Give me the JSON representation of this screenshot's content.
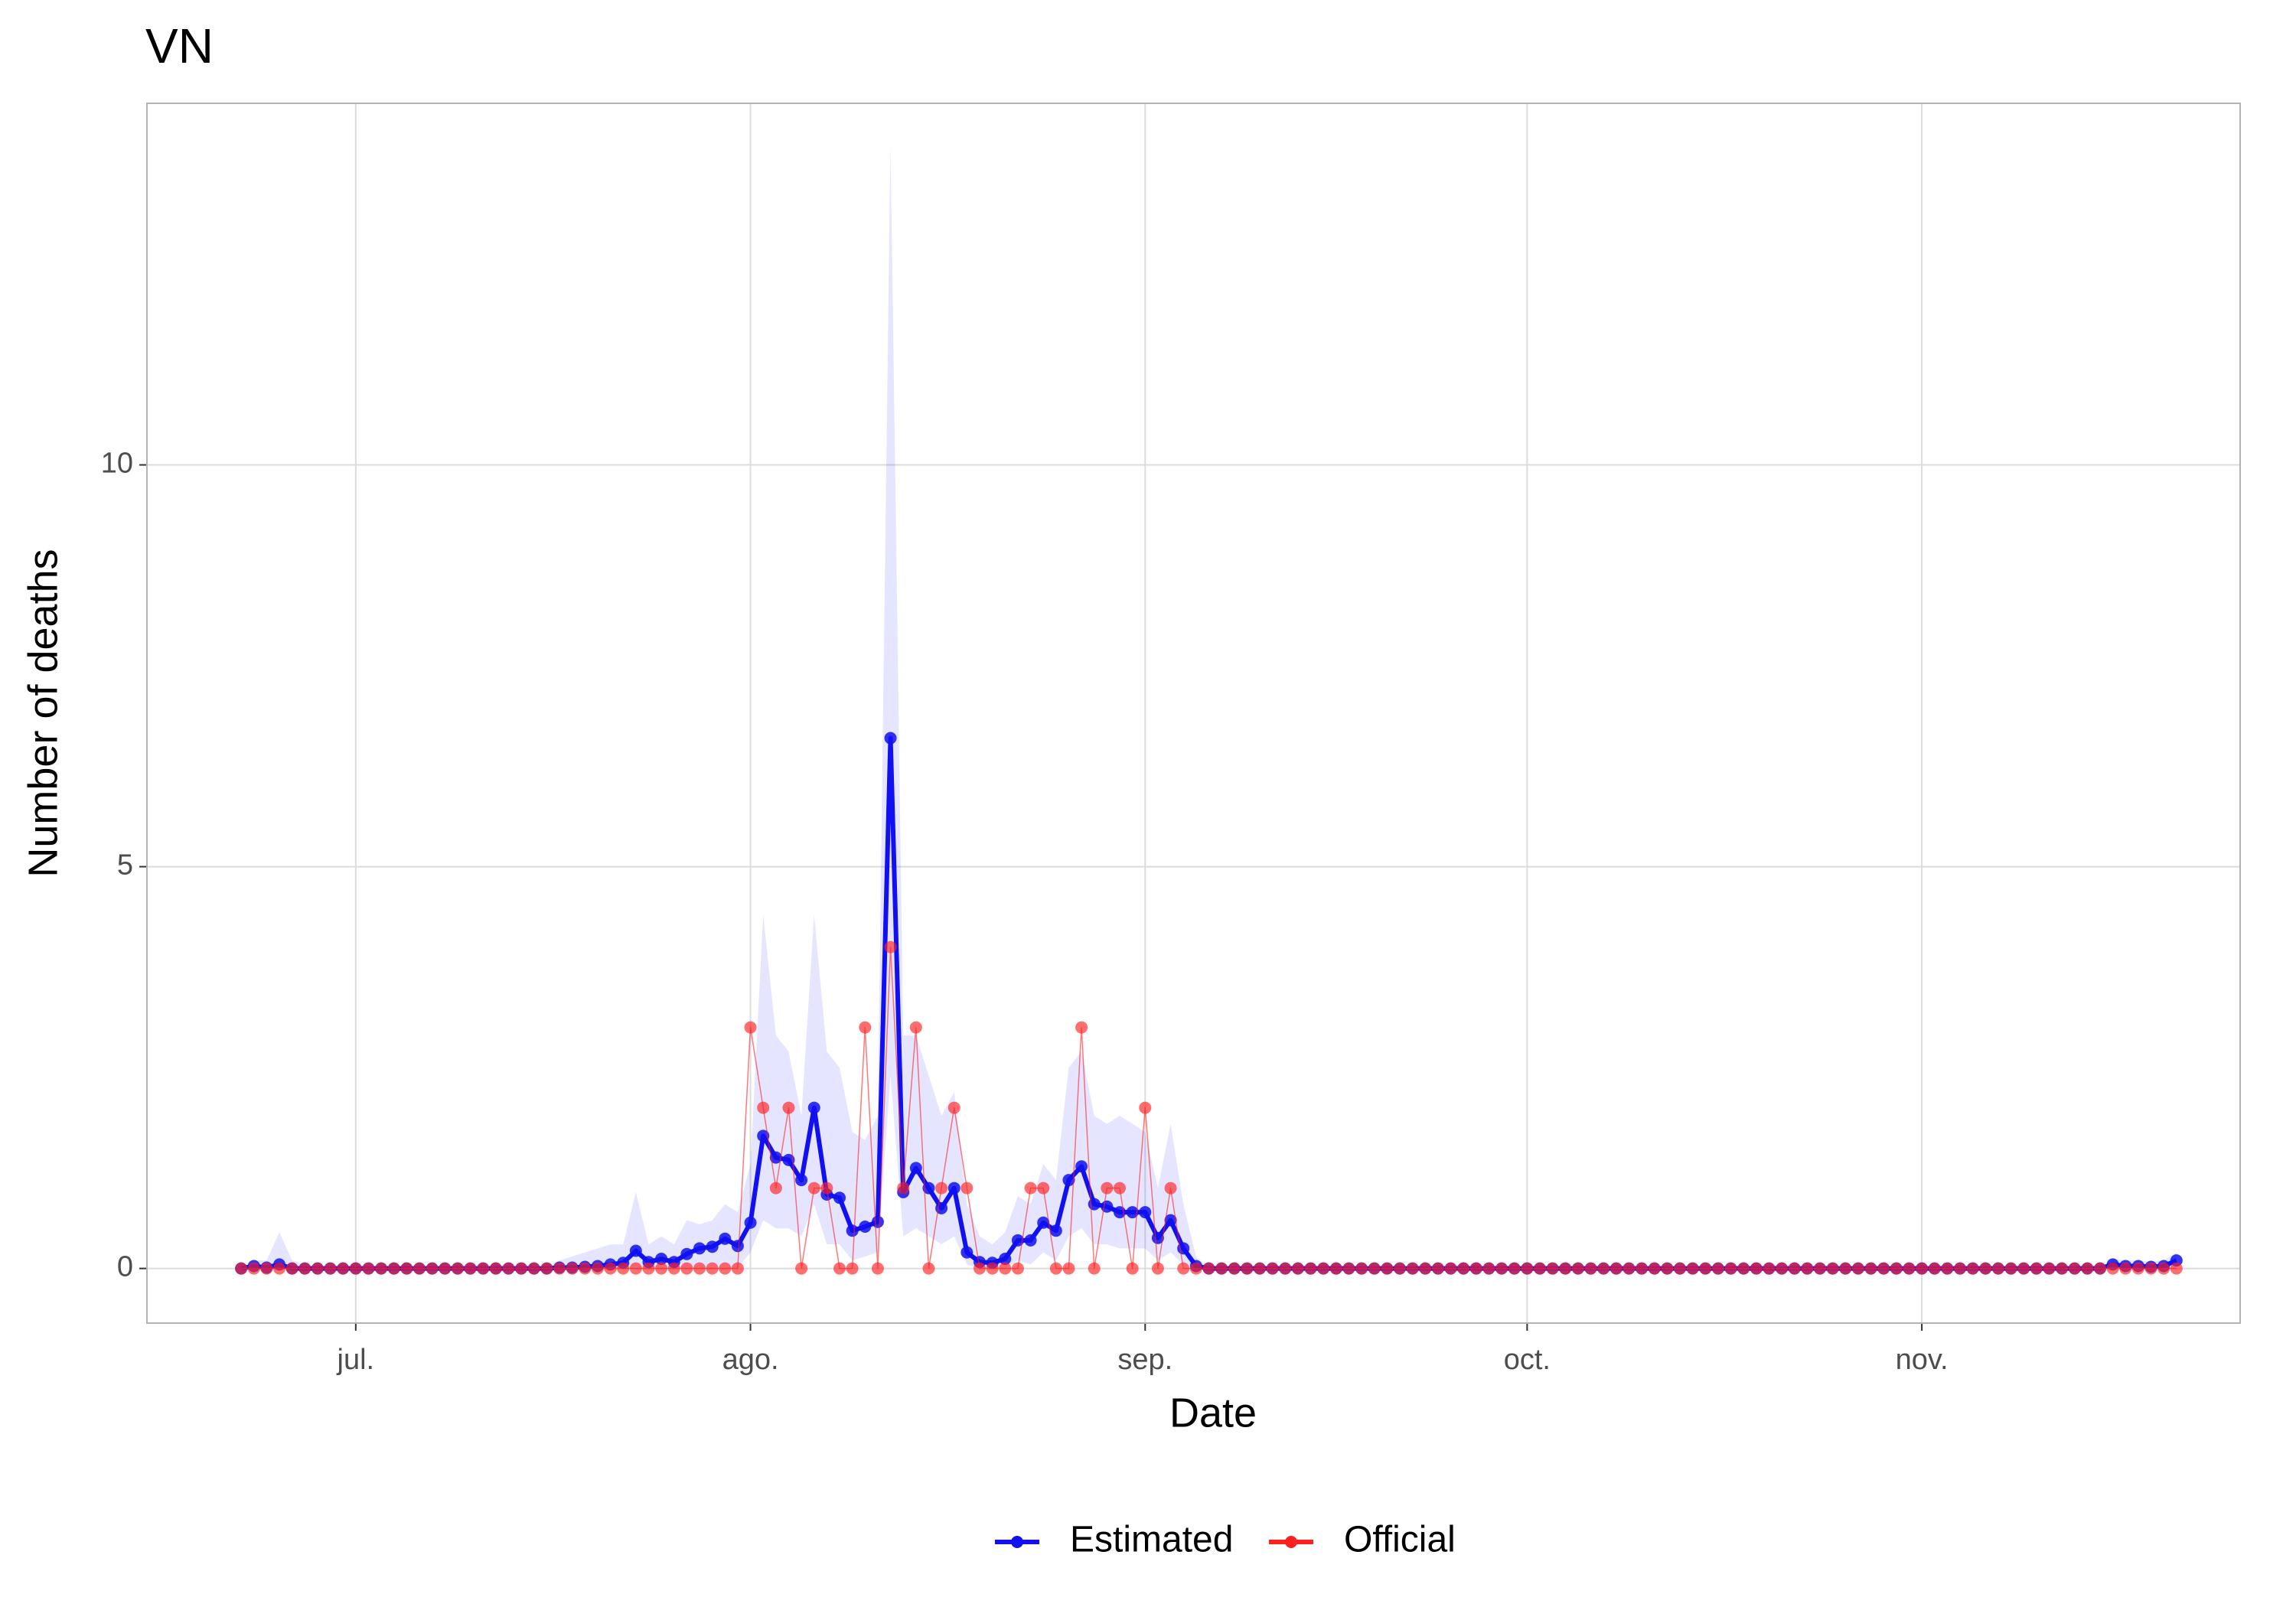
{
  "chart_data": {
    "type": "line",
    "title": "VN",
    "x_label": "Date",
    "y_label": "Number of deaths",
    "x": [
      -9,
      -8,
      -7,
      -6,
      -5,
      -4,
      -3,
      -2,
      -1,
      0,
      1,
      2,
      3,
      4,
      5,
      6,
      7,
      8,
      9,
      10,
      11,
      12,
      13,
      14,
      15,
      16,
      17,
      18,
      19,
      20,
      21,
      22,
      23,
      24,
      25,
      26,
      27,
      28,
      29,
      30,
      31,
      32,
      33,
      34,
      35,
      36,
      37,
      38,
      39,
      40,
      41,
      42,
      43,
      44,
      45,
      46,
      47,
      48,
      49,
      50,
      51,
      52,
      53,
      54,
      55,
      56,
      57,
      58,
      59,
      60,
      61,
      62,
      63,
      64,
      65,
      66,
      67,
      68,
      69,
      70,
      71,
      72,
      73,
      74,
      75,
      76,
      77,
      78,
      79,
      80,
      81,
      82,
      83,
      84,
      85,
      86,
      87,
      88,
      89,
      90,
      91,
      92,
      93,
      94,
      95,
      96,
      97,
      98,
      99,
      100,
      101,
      102,
      103,
      104,
      105,
      106,
      107,
      108,
      109,
      110,
      111,
      112,
      113,
      114,
      115,
      116,
      117,
      118,
      119,
      120,
      121,
      122,
      123,
      124,
      125,
      126,
      127,
      128,
      129,
      130,
      131,
      132,
      133,
      134,
      135,
      136,
      137,
      138,
      139,
      140,
      141,
      142,
      143
    ],
    "xlim": [
      -16.4,
      148
    ],
    "xticks": [
      {
        "value": 0,
        "label": "jul."
      },
      {
        "value": 31,
        "label": "ago."
      },
      {
        "value": 62,
        "label": "sep."
      },
      {
        "value": 92,
        "label": "oct."
      },
      {
        "value": 123,
        "label": "nov."
      }
    ],
    "ylim": [
      -0.68,
      14.5
    ],
    "yticks": [
      0,
      5,
      10
    ],
    "grid": true,
    "legend": "bottom",
    "series": [
      {
        "name": "Estimated",
        "color": "#1010f0",
        "band_color": "#0000ff",
        "values": [
          0,
          0.03,
          0.01,
          0.05,
          0,
          0,
          0,
          0,
          0,
          0,
          0,
          0,
          0,
          0,
          0,
          0,
          0,
          0,
          0,
          0,
          0,
          0,
          0,
          0,
          0,
          0.01,
          0.01,
          0.02,
          0.03,
          0.05,
          0.07,
          0.22,
          0.08,
          0.12,
          0.08,
          0.18,
          0.25,
          0.27,
          0.37,
          0.28,
          0.57,
          1.65,
          1.38,
          1.35,
          1.1,
          2.0,
          0.92,
          0.88,
          0.47,
          0.52,
          0.58,
          6.6,
          0.95,
          1.25,
          1.0,
          0.75,
          1.0,
          0.2,
          0.08,
          0.07,
          0.12,
          0.35,
          0.35,
          0.57,
          0.47,
          1.1,
          1.27,
          0.8,
          0.77,
          0.7,
          0.7,
          0.7,
          0.38,
          0.6,
          0.25,
          0.03,
          0,
          0,
          0,
          0,
          0,
          0,
          0,
          0,
          0,
          0,
          0,
          0,
          0,
          0,
          0,
          0,
          0,
          0,
          0,
          0,
          0,
          0,
          0,
          0,
          0,
          0,
          0,
          0,
          0,
          0,
          0,
          0,
          0,
          0,
          0,
          0,
          0,
          0,
          0,
          0,
          0,
          0,
          0,
          0,
          0,
          0,
          0,
          0,
          0,
          0,
          0,
          0,
          0,
          0,
          0,
          0,
          0,
          0,
          0,
          0,
          0,
          0,
          0,
          0,
          0,
          0,
          0,
          0,
          0,
          0,
          0,
          0.05,
          0.03,
          0.03,
          0.02,
          0.03,
          0.1
        ],
        "upper": [
          0.02,
          0.1,
          0.1,
          0.45,
          0.1,
          0.05,
          0.02,
          0.02,
          0.02,
          0.02,
          0.02,
          0.02,
          0.02,
          0.02,
          0.02,
          0.02,
          0.02,
          0.02,
          0.02,
          0.02,
          0.02,
          0.02,
          0.02,
          0.02,
          0.02,
          0.1,
          0.15,
          0.2,
          0.25,
          0.3,
          0.3,
          0.95,
          0.3,
          0.4,
          0.3,
          0.6,
          0.55,
          0.6,
          0.8,
          0.7,
          1.3,
          4.4,
          2.9,
          2.7,
          1.9,
          4.4,
          2.7,
          2.5,
          1.7,
          1.6,
          1.9,
          14.0,
          2.9,
          2.9,
          2.4,
          1.9,
          2.2,
          0.8,
          0.4,
          0.3,
          0.45,
          0.9,
          0.8,
          1.3,
          1.1,
          2.5,
          2.7,
          1.9,
          1.8,
          1.9,
          1.8,
          1.7,
          1.0,
          1.8,
          0.8,
          0.15,
          0,
          0,
          0,
          0,
          0,
          0,
          0,
          0,
          0,
          0,
          0,
          0,
          0,
          0,
          0,
          0,
          0,
          0,
          0,
          0,
          0,
          0,
          0,
          0,
          0,
          0,
          0,
          0,
          0,
          0,
          0,
          0,
          0,
          0,
          0,
          0,
          0,
          0,
          0,
          0,
          0,
          0,
          0,
          0,
          0,
          0,
          0,
          0,
          0,
          0,
          0,
          0,
          0,
          0,
          0,
          0,
          0,
          0,
          0,
          0,
          0,
          0,
          0,
          0,
          0,
          0,
          0,
          0,
          0,
          0,
          0,
          0.12,
          0.1,
          0.1,
          0.08,
          0.1,
          0.2
        ],
        "lower": [
          0,
          0,
          0,
          0,
          0,
          0,
          0,
          0,
          0,
          0,
          0,
          0,
          0,
          0,
          0,
          0,
          0,
          0,
          0,
          0,
          0,
          0,
          0,
          0,
          0,
          0,
          0,
          0,
          0,
          0,
          0,
          0,
          0,
          0,
          0,
          0,
          0,
          0,
          0,
          0,
          0.2,
          0.6,
          0.5,
          0.5,
          0.4,
          0.8,
          0.3,
          0.3,
          0.1,
          0.15,
          0.2,
          2.4,
          0.4,
          0.5,
          0.4,
          0.3,
          0.4,
          0.05,
          0,
          0,
          0,
          0.1,
          0.05,
          0.2,
          0.1,
          0.4,
          0.5,
          0.3,
          0.3,
          0.25,
          0.25,
          0.25,
          0.1,
          0.2,
          0.05,
          0,
          0,
          0,
          0,
          0,
          0,
          0,
          0,
          0,
          0,
          0,
          0,
          0,
          0,
          0,
          0,
          0,
          0,
          0,
          0,
          0,
          0,
          0,
          0,
          0,
          0,
          0,
          0,
          0,
          0,
          0,
          0,
          0,
          0,
          0,
          0,
          0,
          0,
          0,
          0,
          0,
          0,
          0,
          0,
          0,
          0,
          0,
          0,
          0,
          0,
          0,
          0,
          0,
          0,
          0,
          0,
          0,
          0,
          0,
          0,
          0,
          0,
          0,
          0,
          0,
          0,
          0,
          0,
          0,
          0,
          0,
          0,
          0,
          0,
          0,
          0,
          0,
          0
        ]
      },
      {
        "name": "Official",
        "color": "#ff2020",
        "values": [
          0,
          0,
          0,
          0,
          0,
          0,
          0,
          0,
          0,
          0,
          0,
          0,
          0,
          0,
          0,
          0,
          0,
          0,
          0,
          0,
          0,
          0,
          0,
          0,
          0,
          0,
          0,
          0,
          0,
          0,
          0,
          0,
          0,
          0,
          0,
          0,
          0,
          0,
          0,
          0,
          3,
          2,
          1,
          2,
          0,
          1,
          1,
          0,
          0,
          3,
          0,
          4,
          1,
          3,
          0,
          1,
          2,
          1,
          0,
          0,
          0,
          0,
          1,
          1,
          0,
          0,
          3,
          0,
          1,
          1,
          0,
          2,
          0,
          1,
          0,
          0,
          0,
          0,
          0,
          0,
          0,
          0,
          0,
          0,
          0,
          0,
          0,
          0,
          0,
          0,
          0,
          0,
          0,
          0,
          0,
          0,
          0,
          0,
          0,
          0,
          0,
          0,
          0,
          0,
          0,
          0,
          0,
          0,
          0,
          0,
          0,
          0,
          0,
          0,
          0,
          0,
          0,
          0,
          0,
          0,
          0,
          0,
          0,
          0,
          0,
          0,
          0,
          0,
          0,
          0,
          0,
          0,
          0,
          0,
          0,
          0,
          0,
          0,
          0,
          0,
          0,
          0,
          0,
          0,
          0,
          0,
          0,
          0,
          0,
          0,
          0,
          0,
          0
        ]
      }
    ]
  }
}
